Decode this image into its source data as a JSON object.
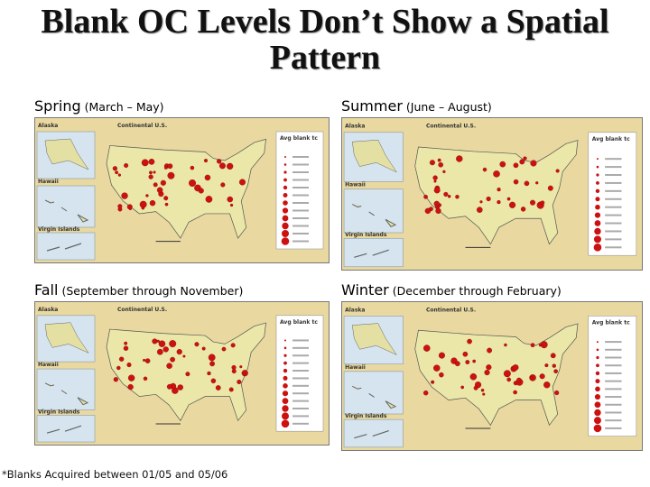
{
  "header": {
    "title": "Blank OC Levels Don’t Show a Spatial Pattern"
  },
  "panels": [
    {
      "season": "Spring",
      "range": "(March – May)",
      "map": {
        "labels": [
          "Alaska",
          "Continental U.S.",
          "Hawaii",
          "Virgin Islands"
        ],
        "legend_title": "Avg blank tc"
      }
    },
    {
      "season": "Summer",
      "range": "(June – August)",
      "map": {
        "labels": [
          "Alaska",
          "Continental U.S.",
          "Hawaii",
          "Virgin Islands"
        ],
        "legend_title": "Avg blank tc"
      }
    },
    {
      "season": "Fall",
      "range": "(September through November)",
      "map": {
        "labels": [
          "Alaska",
          "Continental U.S.",
          "Hawaii",
          "Virgin Islands"
        ],
        "legend_title": "Avg blank tc"
      }
    },
    {
      "season": "Winter",
      "range": "(December through February)",
      "map": {
        "labels": [
          "Alaska",
          "Continental U.S.",
          "Hawaii",
          "Virgin Islands"
        ],
        "legend_title": "Avg blank tc"
      }
    }
  ],
  "footnote": "*Blanks Acquired between 01/05 and 05/06"
}
